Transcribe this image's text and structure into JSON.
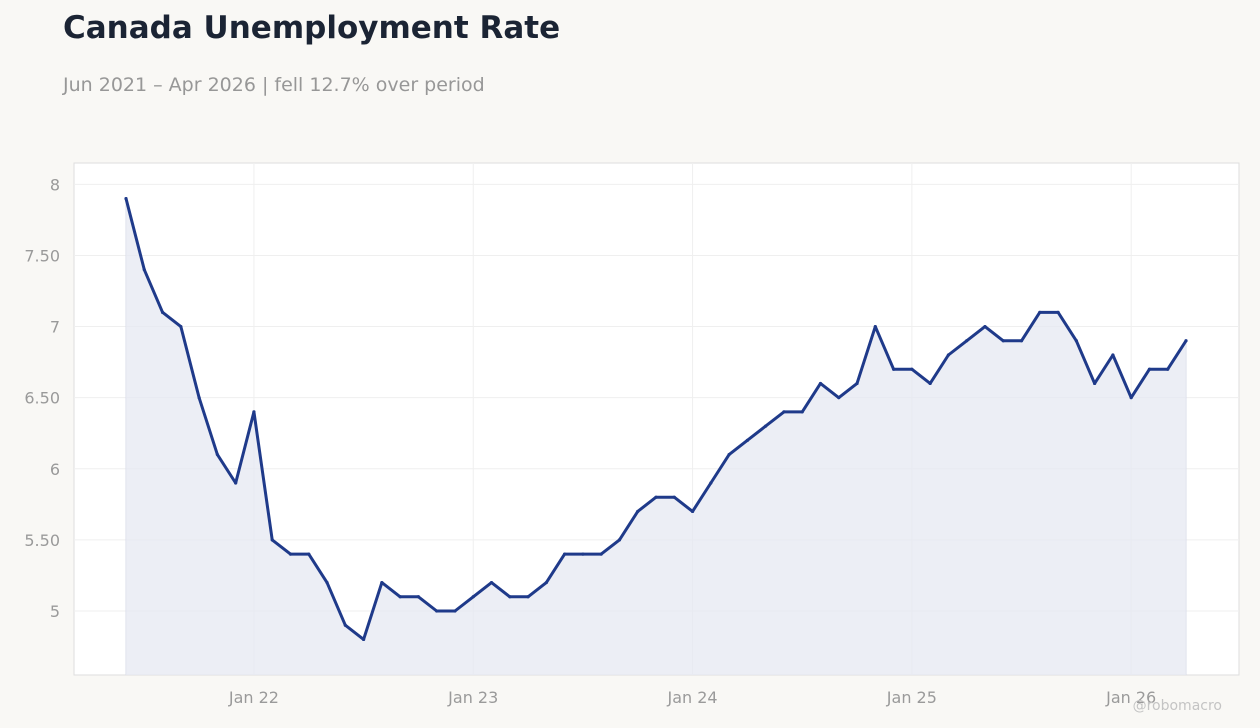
{
  "header": {
    "title": "Canada Unemployment Rate",
    "subtitle": "Jun 2021 – Apr 2026 | fell 12.7% over period"
  },
  "watermark": "@robomacro",
  "colors": {
    "line": "#1f3a8a",
    "area": "#e6e8f2",
    "background": "#f9f8f5",
    "plot_background": "#ffffff"
  },
  "chart_data": {
    "type": "area",
    "title": "Canada Unemployment Rate",
    "subtitle": "Jun 2021 – Apr 2026 | fell 12.7% over period",
    "xlabel": "",
    "ylabel": "",
    "x_start": "2021-06",
    "x_end": "2026-04",
    "ylim": [
      4.55,
      8.15
    ],
    "grid": true,
    "legend": "none",
    "x_ticks": [
      {
        "label": "Jan 22",
        "date": "2022-01"
      },
      {
        "label": "Jan 23",
        "date": "2023-01"
      },
      {
        "label": "Jan 24",
        "date": "2024-01"
      },
      {
        "label": "Jan 25",
        "date": "2025-01"
      },
      {
        "label": "Jan 26",
        "date": "2026-01"
      }
    ],
    "y_ticks": [
      {
        "label": "5",
        "value": 5
      },
      {
        "label": "5.50",
        "value": 5.5
      },
      {
        "label": "6",
        "value": 6
      },
      {
        "label": "6.50",
        "value": 6.5
      },
      {
        "label": "7",
        "value": 7
      },
      {
        "label": "7.50",
        "value": 7.5
      },
      {
        "label": "8",
        "value": 8
      }
    ],
    "series": [
      {
        "x": [
          "2021-06",
          "2021-07",
          "2021-08",
          "2021-09",
          "2021-10",
          "2021-11",
          "2021-12",
          "2022-01",
          "2022-02",
          "2022-03",
          "2022-04",
          "2022-05",
          "2022-06",
          "2022-07",
          "2022-08",
          "2022-09",
          "2022-10",
          "2022-11",
          "2022-12",
          "2023-01",
          "2023-02",
          "2023-03",
          "2023-04",
          "2023-05",
          "2023-06",
          "2023-07",
          "2023-08",
          "2023-09",
          "2023-10",
          "2023-11",
          "2023-12",
          "2024-01",
          "2024-02",
          "2024-03",
          "2024-04",
          "2024-05",
          "2024-06",
          "2024-07",
          "2024-08",
          "2024-09",
          "2024-10",
          "2024-11",
          "2024-12",
          "2025-01",
          "2025-02",
          "2025-03",
          "2025-04",
          "2025-05",
          "2025-06",
          "2025-07",
          "2025-08",
          "2025-09",
          "2025-10",
          "2025-11",
          "2025-12",
          "2026-01",
          "2026-02",
          "2026-03",
          "2026-04"
        ],
        "values": [
          7.9,
          7.4,
          7.1,
          7.0,
          6.5,
          6.1,
          5.9,
          6.4,
          5.5,
          5.4,
          5.4,
          5.2,
          4.9,
          4.8,
          5.2,
          5.1,
          5.1,
          5.0,
          5.0,
          5.1,
          5.2,
          5.1,
          5.1,
          5.2,
          5.4,
          5.4,
          5.4,
          5.5,
          5.7,
          5.8,
          5.8,
          5.7,
          5.9,
          6.1,
          6.2,
          6.3,
          6.4,
          6.4,
          6.6,
          6.5,
          6.6,
          7.0,
          6.7,
          6.7,
          6.6,
          6.8,
          6.9,
          7.0,
          6.9,
          6.9,
          7.1,
          7.1,
          6.9,
          6.6,
          6.8,
          6.5,
          6.7,
          6.7,
          6.9
        ]
      }
    ]
  }
}
